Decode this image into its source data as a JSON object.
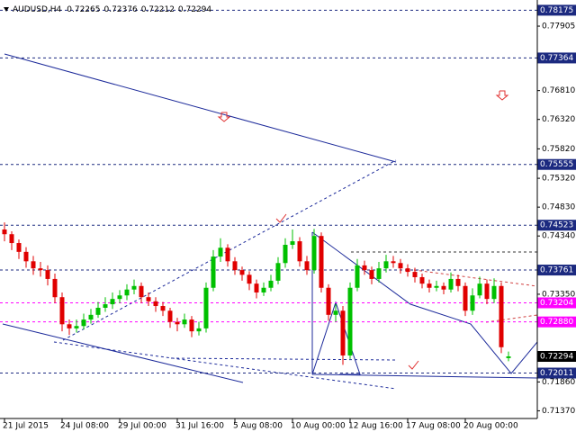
{
  "chart_data": {
    "type": "candlestick",
    "symbol": "AUDUSD,H4",
    "ylim": [
      0.71239,
      0.78349
    ],
    "xlim": [
      0,
      73
    ],
    "up_color": "#00c000",
    "down_color": "#e00000",
    "yticks": [
      0.77905,
      {
        "value": 0.7681,
        "label": "0.76810"
      },
      {
        "value": 0.7632,
        "label": "0.76320"
      },
      {
        "value": 0.7582,
        "label": "0.75820"
      },
      {
        "value": 0.7532,
        "label": "0.75320"
      },
      {
        "value": 0.7483,
        "label": "0.74830"
      },
      {
        "value": 0.7434,
        "label": "0.74340"
      },
      {
        "value": 0.7335,
        "label": "0.73350"
      },
      {
        "value": 0.7186,
        "label": "0.71860"
      },
      {
        "value": 0.7137,
        "label": "0.71370"
      }
    ],
    "levels": [
      {
        "price": 0.78175,
        "color": "#1c2a80"
      },
      {
        "price": 0.77364,
        "color": "#1c2a80"
      },
      {
        "price": 0.75555,
        "color": "#1c2a80"
      },
      {
        "price": 0.74523,
        "color": "#1c2a80"
      },
      {
        "price": 0.73761,
        "color": "#1c2a80"
      },
      {
        "price": 0.73204,
        "color": "#ff00ff"
      },
      {
        "price": {
          "value": 0.7288,
          "label": "0.72880"
        },
        "color": "#ff00ff"
      },
      {
        "price": 0.72011,
        "color": "#1c2a80"
      }
    ],
    "current_price": 0.72294,
    "xticks": [
      {
        "value": 0,
        "label": "21 Jul 2015"
      },
      {
        "value": 8,
        "label": "24 Jul 08:00"
      },
      {
        "value": 16,
        "label": "29 Jul 00:00"
      },
      {
        "value": 24,
        "label": "31 Jul 16:00"
      },
      {
        "value": 32,
        "label": "5 Aug 08:00"
      },
      {
        "value": 40,
        "label": "10 Aug 00:00"
      },
      {
        "value": 48,
        "label": "12 Aug 16:00"
      },
      {
        "value": 56,
        "label": "17 Aug 08:00"
      },
      {
        "value": 64,
        "label": "20 Aug 00:00"
      }
    ],
    "candles": [
      [
        0.7445,
        0.7457,
        0.7425,
        0.7437
      ],
      [
        0.7437,
        0.7442,
        0.741,
        0.7422
      ],
      [
        0.7422,
        0.7428,
        0.7395,
        0.7407
      ],
      [
        0.7407,
        0.7415,
        0.738,
        0.7391
      ],
      [
        0.7391,
        0.74,
        0.7368,
        0.7379
      ],
      [
        0.7379,
        0.739,
        0.7365,
        0.7376
      ],
      [
        0.7376,
        0.7384,
        0.735,
        0.7361
      ],
      [
        0.7361,
        0.737,
        0.732,
        0.733
      ],
      [
        0.733,
        0.7338,
        0.7272,
        0.7284
      ],
      [
        0.7284,
        0.7292,
        0.7266,
        0.7277
      ],
      [
        0.7277,
        0.7292,
        0.727,
        0.7281
      ],
      [
        0.7281,
        0.7302,
        0.7275,
        0.7292
      ],
      [
        0.7292,
        0.731,
        0.7285,
        0.73
      ],
      [
        0.73,
        0.7322,
        0.7295,
        0.7312
      ],
      [
        0.7312,
        0.733,
        0.7305,
        0.7318
      ],
      [
        0.7318,
        0.7338,
        0.731,
        0.7327
      ],
      [
        0.7327,
        0.7342,
        0.732,
        0.7333
      ],
      [
        0.7333,
        0.7352,
        0.7325,
        0.7343
      ],
      [
        0.7343,
        0.736,
        0.7335,
        0.7349
      ],
      [
        0.7349,
        0.7355,
        0.732,
        0.733
      ],
      [
        0.733,
        0.7338,
        0.7315,
        0.7323
      ],
      [
        0.7323,
        0.733,
        0.7305,
        0.7315
      ],
      [
        0.7315,
        0.7322,
        0.7298,
        0.7307
      ],
      [
        0.7307,
        0.7312,
        0.7278,
        0.7288
      ],
      [
        0.7288,
        0.7295,
        0.7272,
        0.7284
      ],
      [
        0.7284,
        0.7302,
        0.7278,
        0.7292
      ],
      [
        0.7292,
        0.7298,
        0.7262,
        0.7272
      ],
      [
        0.7272,
        0.7288,
        0.7265,
        0.7277
      ],
      [
        0.7277,
        0.7355,
        0.727,
        0.7346
      ],
      [
        0.7346,
        0.741,
        0.734,
        0.7399
      ],
      [
        0.7399,
        0.743,
        0.739,
        0.7414
      ],
      [
        0.7414,
        0.742,
        0.7382,
        0.7391
      ],
      [
        0.7391,
        0.7398,
        0.7368,
        0.7376
      ],
      [
        0.7376,
        0.7382,
        0.7358,
        0.7368
      ],
      [
        0.7368,
        0.7374,
        0.7342,
        0.7353
      ],
      [
        0.7353,
        0.736,
        0.7328,
        0.7338
      ],
      [
        0.7338,
        0.7355,
        0.7332,
        0.7346
      ],
      [
        0.7346,
        0.7368,
        0.734,
        0.7358
      ],
      [
        0.7358,
        0.7398,
        0.7352,
        0.7388
      ],
      [
        0.7388,
        0.743,
        0.738,
        0.7419
      ],
      [
        0.7419,
        0.7445,
        0.7412,
        0.7425
      ],
      [
        0.7425,
        0.7432,
        0.7382,
        0.7391
      ],
      [
        0.7391,
        0.74,
        0.7368,
        0.7376
      ],
      [
        0.7376,
        0.7446,
        0.737,
        0.7434
      ],
      [
        0.7434,
        0.744,
        0.7338,
        0.7346
      ],
      [
        0.7346,
        0.7352,
        0.729,
        0.73
      ],
      [
        0.73,
        0.7318,
        0.7288,
        0.7307
      ],
      [
        0.7307,
        0.7315,
        0.7215,
        0.7231
      ],
      [
        0.7231,
        0.7355,
        0.7225,
        0.7346
      ],
      [
        0.7346,
        0.7395,
        0.734,
        0.7384
      ],
      [
        0.7384,
        0.7392,
        0.7368,
        0.7376
      ],
      [
        0.7376,
        0.7382,
        0.7352,
        0.7361
      ],
      [
        0.7361,
        0.739,
        0.7355,
        0.7379
      ],
      [
        0.7379,
        0.7402,
        0.7372,
        0.7391
      ],
      [
        0.7391,
        0.74,
        0.738,
        0.7388
      ],
      [
        0.7388,
        0.7395,
        0.737,
        0.7379
      ],
      [
        0.7379,
        0.7386,
        0.7365,
        0.7373
      ],
      [
        0.7373,
        0.738,
        0.7355,
        0.7364
      ],
      [
        0.7364,
        0.737,
        0.7345,
        0.7353
      ],
      [
        0.7353,
        0.736,
        0.7338,
        0.7346
      ],
      [
        0.7346,
        0.7358,
        0.734,
        0.7349
      ],
      [
        0.7349,
        0.7355,
        0.7335,
        0.7343
      ],
      [
        0.7343,
        0.7372,
        0.7338,
        0.7361
      ],
      [
        0.7361,
        0.7368,
        0.734,
        0.7349
      ],
      [
        0.7349,
        0.7355,
        0.7298,
        0.7307
      ],
      [
        0.7307,
        0.7345,
        0.73,
        0.7333
      ],
      [
        0.7333,
        0.7365,
        0.7328,
        0.7353
      ],
      [
        0.7353,
        0.736,
        0.7318,
        0.7327
      ],
      [
        0.7327,
        0.7362,
        0.732,
        0.7349
      ],
      [
        0.7349,
        0.7355,
        0.7235,
        0.7245
      ],
      [
        0.72265,
        0.72376,
        0.72212,
        0.72294
      ]
    ]
  }
}
